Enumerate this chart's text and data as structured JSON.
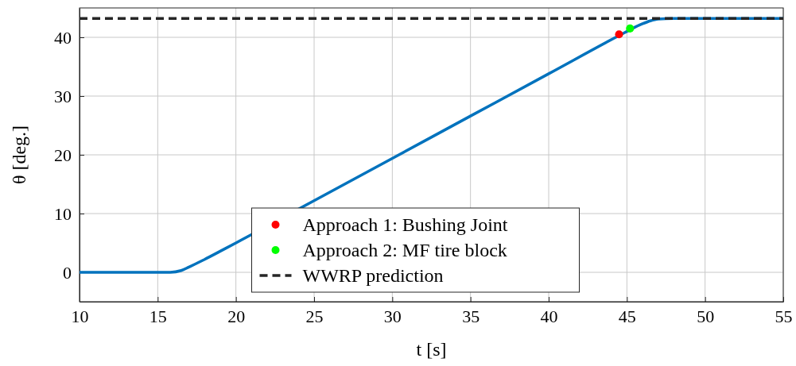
{
  "chart_data": {
    "type": "line",
    "xlabel": "t [s]",
    "ylabel": "θ [deg.]",
    "xlim": [
      10,
      55
    ],
    "ylim": [
      -5,
      45
    ],
    "xticks": [
      10,
      15,
      20,
      25,
      30,
      35,
      40,
      45,
      50,
      55
    ],
    "yticks": [
      0,
      10,
      20,
      30,
      40
    ],
    "grid": true,
    "legend": "bottom",
    "series": [
      {
        "color": "#0072bd",
        "x": [
          10,
          15.8,
          16.5,
          17,
          18,
          19,
          20,
          25,
          30,
          35,
          40,
          44.5,
          45,
          45.5,
          46,
          46.5,
          47,
          48,
          55
        ],
        "values": [
          0,
          0,
          0.3,
          0.9,
          2.2,
          3.6,
          5,
          12.2,
          19.4,
          26.6,
          33.8,
          40.3,
          41,
          41.7,
          42.3,
          42.8,
          43.1,
          43.2,
          43.2
        ],
        "marker": "none",
        "line_style": "solid"
      },
      {
        "type": "scatter",
        "name": "Approach 1: Bushing Joint",
        "color": "#ff0000",
        "x": [
          44.5
        ],
        "values": [
          40.5
        ],
        "marker": "circle"
      },
      {
        "type": "scatter",
        "name": "Approach 2: MF tire block",
        "color": "#00ff00",
        "x": [
          45.2
        ],
        "values": [
          41.5
        ],
        "marker": "circle"
      },
      {
        "type": "line",
        "name": "WWRP prediction",
        "color": "#262626",
        "x": [
          10,
          55
        ],
        "values": [
          43.2,
          43.2
        ],
        "marker": "none",
        "line_style": "dashed"
      }
    ]
  }
}
